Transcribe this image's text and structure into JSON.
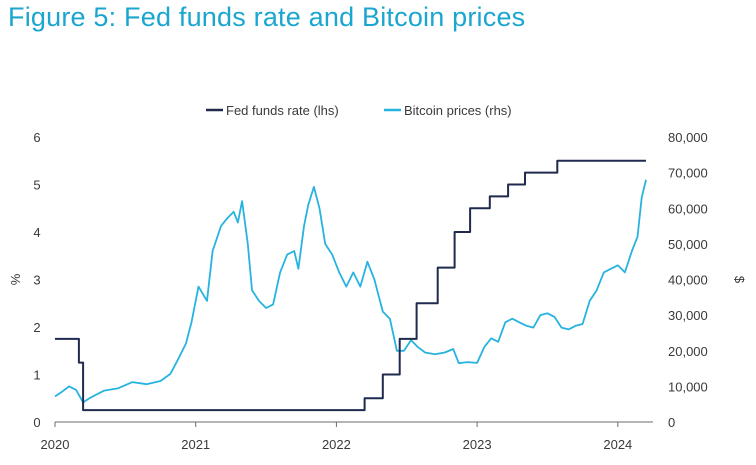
{
  "title": "Figure 5: Fed funds rate and Bitcoin prices",
  "chart_data": {
    "type": "line",
    "legend_position": "top",
    "grid": false,
    "colors": {
      "fed": "#1f2a4e",
      "btc": "#27b3e0",
      "title": "#1ba6cf"
    },
    "y_left": {
      "label": "%",
      "range": [
        0,
        6
      ],
      "ticks": [
        "0",
        "1",
        "2",
        "3",
        "4",
        "5",
        "6"
      ]
    },
    "y_right": {
      "label": "$",
      "range": [
        0,
        80000
      ],
      "ticks": [
        "0",
        "10,000",
        "20,000",
        "30,000",
        "40,000",
        "50,000",
        "60,000",
        "70,000",
        "80,000"
      ]
    },
    "x": {
      "range": [
        2020.0,
        2024.25
      ],
      "ticks": [
        "2020",
        "2021",
        "2022",
        "2023",
        "2024"
      ]
    },
    "series": [
      {
        "name": "Fed funds rate (lhs)",
        "axis": "left",
        "points": [
          [
            2020.0,
            1.75
          ],
          [
            2020.17,
            1.75
          ],
          [
            2020.17,
            1.25
          ],
          [
            2020.2,
            1.25
          ],
          [
            2020.2,
            0.25
          ],
          [
            2022.2,
            0.25
          ],
          [
            2022.2,
            0.5
          ],
          [
            2022.33,
            0.5
          ],
          [
            2022.33,
            1.0
          ],
          [
            2022.45,
            1.0
          ],
          [
            2022.45,
            1.75
          ],
          [
            2022.57,
            1.75
          ],
          [
            2022.57,
            2.5
          ],
          [
            2022.72,
            2.5
          ],
          [
            2022.72,
            3.25
          ],
          [
            2022.84,
            3.25
          ],
          [
            2022.84,
            4.0
          ],
          [
            2022.95,
            4.0
          ],
          [
            2022.95,
            4.5
          ],
          [
            2023.09,
            4.5
          ],
          [
            2023.09,
            4.75
          ],
          [
            2023.22,
            4.75
          ],
          [
            2023.22,
            5.0
          ],
          [
            2023.34,
            5.0
          ],
          [
            2023.34,
            5.25
          ],
          [
            2023.57,
            5.25
          ],
          [
            2023.57,
            5.5
          ],
          [
            2024.2,
            5.5
          ]
        ]
      },
      {
        "name": "Bitcoin prices (rhs)",
        "axis": "right",
        "points": [
          [
            2020.0,
            7200
          ],
          [
            2020.05,
            8500
          ],
          [
            2020.1,
            10000
          ],
          [
            2020.15,
            9000
          ],
          [
            2020.2,
            5500
          ],
          [
            2020.25,
            6800
          ],
          [
            2020.35,
            8800
          ],
          [
            2020.45,
            9500
          ],
          [
            2020.55,
            11200
          ],
          [
            2020.65,
            10600
          ],
          [
            2020.75,
            11500
          ],
          [
            2020.82,
            13500
          ],
          [
            2020.88,
            18000
          ],
          [
            2020.93,
            22000
          ],
          [
            2020.97,
            28000
          ],
          [
            2021.02,
            38000
          ],
          [
            2021.08,
            34000
          ],
          [
            2021.12,
            48000
          ],
          [
            2021.18,
            55000
          ],
          [
            2021.22,
            57000
          ],
          [
            2021.27,
            59000
          ],
          [
            2021.3,
            56000
          ],
          [
            2021.33,
            62000
          ],
          [
            2021.37,
            50000
          ],
          [
            2021.4,
            37000
          ],
          [
            2021.45,
            34000
          ],
          [
            2021.5,
            32000
          ],
          [
            2021.55,
            33000
          ],
          [
            2021.6,
            42000
          ],
          [
            2021.65,
            47000
          ],
          [
            2021.7,
            48000
          ],
          [
            2021.73,
            43000
          ],
          [
            2021.77,
            55000
          ],
          [
            2021.8,
            61000
          ],
          [
            2021.84,
            66000
          ],
          [
            2021.88,
            60000
          ],
          [
            2021.92,
            50000
          ],
          [
            2021.97,
            47000
          ],
          [
            2022.02,
            42000
          ],
          [
            2022.07,
            38000
          ],
          [
            2022.12,
            42000
          ],
          [
            2022.17,
            38000
          ],
          [
            2022.22,
            45000
          ],
          [
            2022.27,
            40000
          ],
          [
            2022.33,
            31000
          ],
          [
            2022.38,
            29000
          ],
          [
            2022.43,
            20000
          ],
          [
            2022.48,
            20000
          ],
          [
            2022.53,
            23000
          ],
          [
            2022.58,
            21000
          ],
          [
            2022.63,
            19500
          ],
          [
            2022.7,
            19000
          ],
          [
            2022.77,
            19500
          ],
          [
            2022.83,
            20500
          ],
          [
            2022.87,
            16500
          ],
          [
            2022.93,
            16800
          ],
          [
            2023.0,
            16600
          ],
          [
            2023.05,
            21000
          ],
          [
            2023.1,
            23500
          ],
          [
            2023.15,
            22500
          ],
          [
            2023.2,
            28000
          ],
          [
            2023.25,
            29000
          ],
          [
            2023.3,
            28000
          ],
          [
            2023.35,
            27000
          ],
          [
            2023.4,
            26500
          ],
          [
            2023.45,
            30000
          ],
          [
            2023.5,
            30500
          ],
          [
            2023.55,
            29500
          ],
          [
            2023.6,
            26500
          ],
          [
            2023.65,
            26000
          ],
          [
            2023.7,
            27000
          ],
          [
            2023.75,
            27500
          ],
          [
            2023.8,
            34000
          ],
          [
            2023.85,
            37000
          ],
          [
            2023.9,
            42000
          ],
          [
            2023.95,
            43000
          ],
          [
            2024.0,
            44000
          ],
          [
            2024.05,
            42000
          ],
          [
            2024.1,
            48000
          ],
          [
            2024.14,
            52000
          ],
          [
            2024.17,
            63000
          ],
          [
            2024.2,
            68000
          ]
        ]
      }
    ]
  }
}
